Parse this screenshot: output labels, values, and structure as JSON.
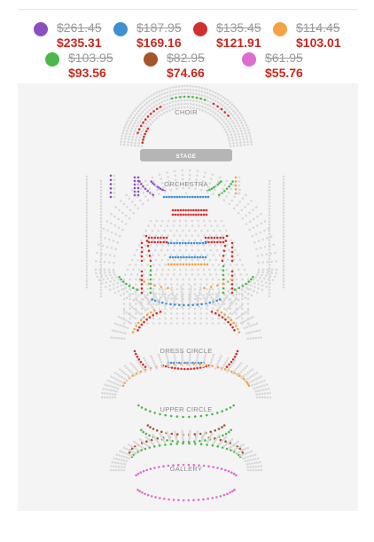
{
  "legend": [
    {
      "color": "#8b4fc1",
      "old": "$261.45",
      "new": "$235.31"
    },
    {
      "color": "#3e8fd6",
      "old": "$187.95",
      "new": "$169.16"
    },
    {
      "color": "#d22f2f",
      "old": "$135.45",
      "new": "$121.91"
    },
    {
      "color": "#f4a244",
      "old": "$114.45",
      "new": "$103.01"
    },
    {
      "color": "#4cb84a",
      "old": "$103.95",
      "new": "$93.56"
    },
    {
      "color": "#a4552a",
      "old": "$82.95",
      "new": "$74.66"
    },
    {
      "color": "#de6dd2",
      "old": "$61.95",
      "new": "$55.76"
    }
  ],
  "map": {
    "choir": "CHOIR",
    "stage": "STAGE",
    "orchestra": "ORCHESTRA",
    "dress_circle": "DRESS CIRCLE",
    "upper_circle": "UPPER CIRCLE",
    "gallery": "GALLERY"
  },
  "colors": {
    "empty_seat": "#d9d9d9",
    "stage": "#b5b5b5"
  }
}
